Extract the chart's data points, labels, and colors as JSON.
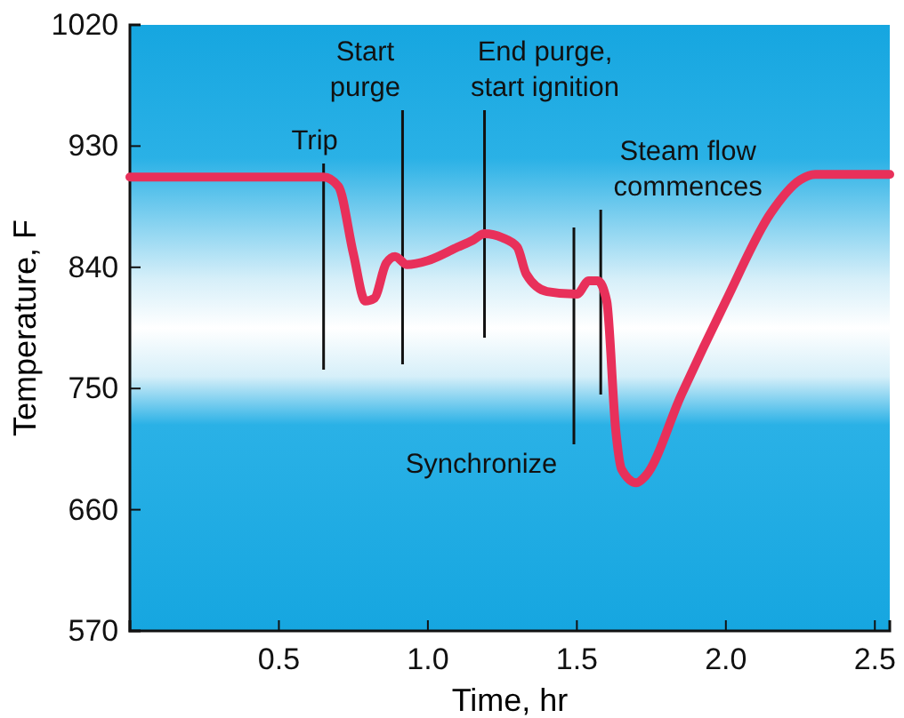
{
  "chart_data": {
    "type": "line",
    "xlabel": "Time, hr",
    "ylabel": "Temperature, F",
    "xlim": [
      0,
      2.55
    ],
    "ylim": [
      570,
      1020
    ],
    "xticks": [
      0.5,
      {
        "value": 1,
        "label": "1.0"
      },
      1.5,
      {
        "value": 2,
        "label": "2.0"
      },
      2.5
    ],
    "yticks": [
      570,
      660,
      750,
      840,
      930,
      1020
    ],
    "grid": false,
    "marker": "none",
    "line_style": "solid",
    "series": [
      {
        "color": "#e8305a",
        "x": [
          0,
          0.65,
          0.7,
          0.75,
          0.79,
          0.82,
          0.86,
          0.89,
          0.93,
          1.0,
          1.1,
          1.15,
          1.19,
          1.25,
          1.3,
          1.33,
          1.4,
          1.5,
          1.54,
          1.57,
          1.6,
          1.63,
          1.65,
          1.7,
          1.73,
          1.85,
          2.0,
          2.15,
          2.25,
          2.3,
          2.55
        ],
        "values": [
          907,
          907,
          900,
          850,
          815,
          817,
          843,
          848,
          842,
          845,
          855,
          860,
          865,
          862,
          855,
          835,
          822,
          820,
          830,
          830,
          815,
          720,
          690,
          680,
          685,
          745,
          815,
          880,
          905,
          909,
          909
        ]
      }
    ],
    "ref_lines": [
      {
        "axis": "x",
        "value": 0.65,
        "label": "Trip",
        "color": "#111111"
      },
      {
        "axis": "x",
        "value": 0.915,
        "label": "Start\npurge",
        "color": "#111111"
      },
      {
        "axis": "x",
        "value": 1.19,
        "label": "End purge,\nstart ignition",
        "color": "#111111"
      },
      {
        "axis": "x",
        "value": 1.49,
        "label": "Synchronize",
        "color": "#111111"
      },
      {
        "axis": "x",
        "value": 1.58,
        "label": "Steam flow\ncommences",
        "color": "#111111"
      }
    ]
  }
}
